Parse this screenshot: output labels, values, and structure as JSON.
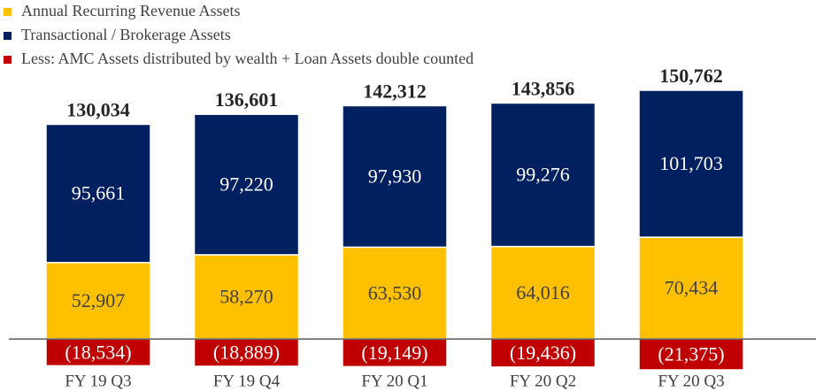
{
  "chart_data": {
    "type": "stacked_bar",
    "categories": [
      "FY 19 Q3",
      "FY 19 Q4",
      "FY 20 Q1",
      "FY 20 Q2",
      "FY 20 Q3"
    ],
    "series": [
      {
        "name": "Annual Recurring Revenue Assets",
        "color": "#FFC000",
        "label_color": "#404040",
        "values": [
          52907,
          58270,
          63530,
          64016,
          70434
        ],
        "value_labels": [
          "52,907",
          "58,270",
          "63,530",
          "64,016",
          "70,434"
        ]
      },
      {
        "name": "Transactional / Brokerage Assets",
        "color": "#002060",
        "label_color": "#ffffff",
        "values": [
          95661,
          97220,
          97930,
          99276,
          101703
        ],
        "value_labels": [
          "95,661",
          "97,220",
          "97,930",
          "99,276",
          "101,703"
        ]
      },
      {
        "name": "Less: AMC Assets distributed by wealth + Loan Assets double counted",
        "color": "#C00000",
        "label_color": "#ffffff",
        "values": [
          -18534,
          -18889,
          -19149,
          -19436,
          -21375
        ],
        "value_labels": [
          "(18,534)",
          "(18,889)",
          "(19,149)",
          "(19,436)",
          "(21,375)"
        ]
      }
    ],
    "totals": [
      130034,
      136601,
      142312,
      143856,
      150762
    ],
    "total_labels": [
      "130,034",
      "136,601",
      "142,312",
      "143,856",
      "150,762"
    ],
    "legend": "top-left"
  }
}
